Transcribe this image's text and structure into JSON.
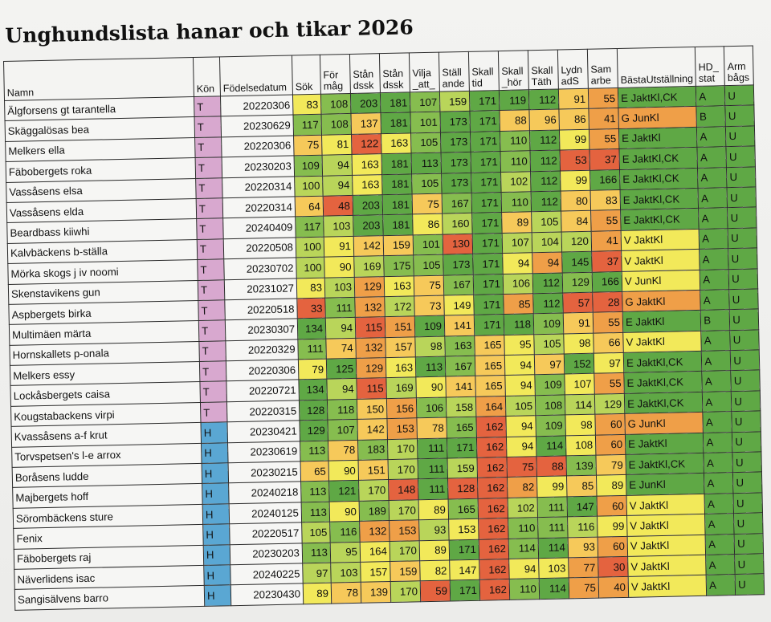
{
  "title": "Unghundslista hanar och tikar 2026",
  "headers": [
    "Namn",
    "Kön",
    "Födelsedatum",
    "Sök",
    "För måg",
    "Stån dssk",
    "Stån dssk",
    "Vilja _att_",
    "Ställ ande",
    "Skall tid",
    "Skall _hör",
    "Skall Täth",
    "Lydn adS",
    "Sam arbe",
    "BästaUtställning",
    "HD_ stat",
    "Arm bågs"
  ],
  "colors": {
    "female": "#d8a8cf",
    "male": "#5aa7d3",
    "dark_green": "#5fa845",
    "green": "#86bd4f",
    "light_green": "#b9d55a",
    "yellow": "#f2e95a",
    "light_orange": "#f6c95a",
    "orange": "#ef9f48",
    "red": "#e4633f"
  },
  "rows": [
    [
      "Älgforsens gt tarantella",
      "T",
      "20220306",
      "83",
      "108",
      "203",
      "181",
      "107",
      "159",
      "171",
      "119",
      "112",
      "91",
      "55",
      "E JaktKl,CK",
      "A",
      "U"
    ],
    [
      "Skäggalösas bea",
      "T",
      "20230629",
      "117",
      "108",
      "137",
      "181",
      "101",
      "173",
      "171",
      "88",
      "96",
      "86",
      "41",
      "G JunKl",
      "B",
      "U"
    ],
    [
      "Melkers ella",
      "T",
      "20220306",
      "75",
      "81",
      "122",
      "163",
      "105",
      "173",
      "171",
      "110",
      "112",
      "99",
      "55",
      "E JaktKl",
      "A",
      "U"
    ],
    [
      "Fäbobergets roka",
      "T",
      "20230203",
      "109",
      "94",
      "163",
      "181",
      "113",
      "173",
      "171",
      "110",
      "112",
      "53",
      "37",
      "E JaktKl,CK",
      "A",
      "U"
    ],
    [
      "Vassåsens elsa",
      "T",
      "20220314",
      "100",
      "94",
      "163",
      "181",
      "105",
      "173",
      "171",
      "102",
      "112",
      "99",
      "166",
      "E JaktKl,CK",
      "A",
      "U"
    ],
    [
      "Vassåsens elda",
      "T",
      "20220314",
      "64",
      "48",
      "203",
      "181",
      "75",
      "167",
      "171",
      "110",
      "112",
      "80",
      "83",
      "E JaktKl,CK",
      "A",
      "U"
    ],
    [
      "Beardbass kiiwhi",
      "T",
      "20240409",
      "117",
      "103",
      "203",
      "181",
      "86",
      "160",
      "171",
      "89",
      "105",
      "84",
      "55",
      "E JaktKl,CK",
      "A",
      "U"
    ],
    [
      "Kalvbäckens b-ställa",
      "T",
      "20220508",
      "100",
      "91",
      "142",
      "159",
      "101",
      "130",
      "171",
      "107",
      "104",
      "120",
      "41",
      "V JaktKl",
      "A",
      "U"
    ],
    [
      "Mörka skogs j iv noomi",
      "T",
      "20230702",
      "100",
      "90",
      "169",
      "175",
      "105",
      "173",
      "171",
      "94",
      "94",
      "145",
      "37",
      "V JaktKl",
      "A",
      "U"
    ],
    [
      "Skenstavikens gun",
      "T",
      "20231027",
      "83",
      "103",
      "129",
      "163",
      "75",
      "167",
      "171",
      "106",
      "112",
      "129",
      "166",
      "V JunKl",
      "A",
      "U"
    ],
    [
      "Aspbergets birka",
      "T",
      "20220518",
      "33",
      "111",
      "132",
      "172",
      "73",
      "149",
      "171",
      "85",
      "112",
      "57",
      "28",
      "G JaktKl",
      "A",
      "U"
    ],
    [
      "Multimäen märta",
      "T",
      "20230307",
      "134",
      "94",
      "115",
      "151",
      "109",
      "141",
      "171",
      "118",
      "109",
      "91",
      "55",
      "E JaktKl",
      "B",
      "U"
    ],
    [
      "Hornskallets p-onala",
      "T",
      "20220329",
      "111",
      "74",
      "132",
      "157",
      "98",
      "163",
      "165",
      "95",
      "105",
      "98",
      "66",
      "V JaktKl",
      "A",
      "U"
    ],
    [
      "Melkers essy",
      "T",
      "20220306",
      "79",
      "125",
      "129",
      "163",
      "113",
      "167",
      "165",
      "94",
      "97",
      "152",
      "97",
      "E JaktKl,CK",
      "A",
      "U"
    ],
    [
      "Lockåsbergets caisa",
      "T",
      "20220721",
      "134",
      "94",
      "115",
      "169",
      "90",
      "141",
      "165",
      "94",
      "109",
      "107",
      "55",
      "E JaktKl,CK",
      "A",
      "U"
    ],
    [
      "Kougstabackens virpi",
      "T",
      "20220315",
      "128",
      "118",
      "150",
      "156",
      "106",
      "158",
      "164",
      "105",
      "108",
      "114",
      "129",
      "E JaktKl,CK",
      "A",
      "U"
    ],
    [
      "Kvassåsens a-f krut",
      "H",
      "20230421",
      "129",
      "107",
      "142",
      "153",
      "78",
      "165",
      "162",
      "94",
      "109",
      "98",
      "60",
      "G JunKl",
      "A",
      "U"
    ],
    [
      "Torvspetsen's l-e arrox",
      "H",
      "20230619",
      "113",
      "78",
      "183",
      "170",
      "111",
      "171",
      "162",
      "94",
      "114",
      "108",
      "60",
      "E JaktKl",
      "A",
      "U"
    ],
    [
      "Boråsens ludde",
      "H",
      "20230215",
      "65",
      "90",
      "151",
      "170",
      "111",
      "159",
      "162",
      "75",
      "88",
      "139",
      "79",
      "E JaktKl,CK",
      "A",
      "U"
    ],
    [
      "Majbergets hoff",
      "H",
      "20240218",
      "113",
      "121",
      "170",
      "148",
      "111",
      "128",
      "162",
      "82",
      "99",
      "85",
      "89",
      "E JunKl",
      "A",
      "U"
    ],
    [
      "Sörombäckens sture",
      "H",
      "20240125",
      "113",
      "90",
      "189",
      "170",
      "89",
      "165",
      "162",
      "102",
      "111",
      "147",
      "60",
      "V JaktKl",
      "A",
      "U"
    ],
    [
      "Fenix",
      "H",
      "20220517",
      "105",
      "116",
      "132",
      "153",
      "93",
      "153",
      "162",
      "110",
      "111",
      "116",
      "99",
      "V JaktKl",
      "A",
      "U"
    ],
    [
      "Fäbobergets raj",
      "H",
      "20230203",
      "113",
      "95",
      "164",
      "170",
      "89",
      "171",
      "162",
      "114",
      "114",
      "93",
      "60",
      "V JaktKl",
      "A",
      "U"
    ],
    [
      "Näverlidens isac",
      "H",
      "20240225",
      "97",
      "103",
      "157",
      "159",
      "82",
      "147",
      "162",
      "94",
      "103",
      "77",
      "30",
      "V JaktKl",
      "A",
      "U"
    ],
    [
      "Sangisälvens barro",
      "H",
      "20230430",
      "89",
      "78",
      "139",
      "170",
      "59",
      "171",
      "162",
      "110",
      "114",
      "75",
      "40",
      "V JaktKl",
      "A",
      "U"
    ]
  ]
}
